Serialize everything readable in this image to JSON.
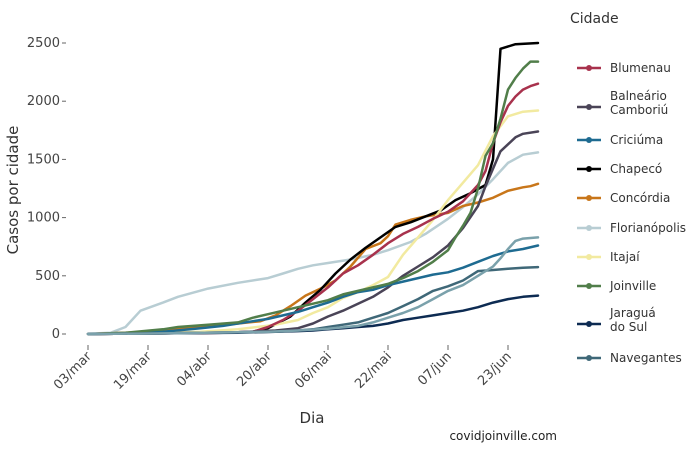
{
  "chart_data": {
    "type": "line",
    "xlabel": "Dia",
    "ylabel": "Casos por cidade",
    "legend_title": "Cidade",
    "legend_placement": "right",
    "credit": "covidjoinville.com",
    "x_ticks": [
      "03/mar",
      "19/mar",
      "04/abr",
      "20/abr",
      "06/mai",
      "22/mai",
      "07/jun",
      "23/jun"
    ],
    "x_tick_days": [
      0,
      16,
      32,
      48,
      64,
      80,
      96,
      112
    ],
    "x_range_days": [
      0,
      120
    ],
    "ylim": [
      0,
      2550
    ],
    "y_ticks": [
      0,
      500,
      1000,
      1500,
      2000,
      2500
    ],
    "grid": false,
    "series": [
      {
        "name": "Florianópolis",
        "color": "#b8cdd3",
        "points": [
          [
            0,
            3
          ],
          [
            6,
            10
          ],
          [
            10,
            60
          ],
          [
            14,
            200
          ],
          [
            20,
            270
          ],
          [
            24,
            320
          ],
          [
            32,
            390
          ],
          [
            40,
            440
          ],
          [
            48,
            480
          ],
          [
            52,
            520
          ],
          [
            56,
            560
          ],
          [
            60,
            590
          ],
          [
            64,
            610
          ],
          [
            70,
            640
          ],
          [
            76,
            680
          ],
          [
            80,
            720
          ],
          [
            86,
            790
          ],
          [
            90,
            860
          ],
          [
            96,
            990
          ],
          [
            100,
            1090
          ],
          [
            104,
            1200
          ],
          [
            108,
            1330
          ],
          [
            112,
            1470
          ],
          [
            116,
            1540
          ],
          [
            120,
            1560
          ]
        ]
      },
      {
        "name": "Concórdia",
        "color": "#c8761a",
        "points": [
          [
            0,
            0
          ],
          [
            10,
            10
          ],
          [
            20,
            30
          ],
          [
            30,
            60
          ],
          [
            40,
            90
          ],
          [
            46,
            110
          ],
          [
            50,
            160
          ],
          [
            54,
            240
          ],
          [
            58,
            330
          ],
          [
            62,
            390
          ],
          [
            66,
            460
          ],
          [
            70,
            580
          ],
          [
            74,
            730
          ],
          [
            78,
            780
          ],
          [
            80,
            840
          ],
          [
            82,
            940
          ],
          [
            86,
            980
          ],
          [
            90,
            1010
          ],
          [
            96,
            1040
          ],
          [
            100,
            1100
          ],
          [
            104,
            1130
          ],
          [
            108,
            1170
          ],
          [
            112,
            1230
          ],
          [
            116,
            1260
          ],
          [
            118,
            1270
          ],
          [
            120,
            1290
          ]
        ]
      },
      {
        "name": "Chapecó",
        "color": "#000000",
        "points": [
          [
            0,
            0
          ],
          [
            20,
            5
          ],
          [
            36,
            10
          ],
          [
            44,
            20
          ],
          [
            48,
            50
          ],
          [
            54,
            150
          ],
          [
            58,
            270
          ],
          [
            62,
            380
          ],
          [
            66,
            520
          ],
          [
            70,
            640
          ],
          [
            74,
            740
          ],
          [
            78,
            830
          ],
          [
            82,
            920
          ],
          [
            86,
            960
          ],
          [
            90,
            1010
          ],
          [
            94,
            1060
          ],
          [
            98,
            1150
          ],
          [
            102,
            1210
          ],
          [
            106,
            1280
          ],
          [
            108,
            1500
          ],
          [
            110,
            2450
          ],
          [
            114,
            2490
          ],
          [
            120,
            2500
          ]
        ]
      },
      {
        "name": "Itajaí",
        "color": "#f2eaa0",
        "points": [
          [
            0,
            0
          ],
          [
            20,
            10
          ],
          [
            30,
            20
          ],
          [
            40,
            40
          ],
          [
            50,
            80
          ],
          [
            56,
            120
          ],
          [
            60,
            180
          ],
          [
            64,
            230
          ],
          [
            68,
            310
          ],
          [
            72,
            360
          ],
          [
            76,
            420
          ],
          [
            80,
            490
          ],
          [
            84,
            680
          ],
          [
            88,
            830
          ],
          [
            92,
            980
          ],
          [
            96,
            1150
          ],
          [
            100,
            1300
          ],
          [
            104,
            1450
          ],
          [
            108,
            1700
          ],
          [
            112,
            1870
          ],
          [
            116,
            1910
          ],
          [
            120,
            1920
          ]
        ]
      },
      {
        "name": "Blumenau",
        "color": "#a8324d",
        "points": [
          [
            0,
            0
          ],
          [
            20,
            5
          ],
          [
            36,
            10
          ],
          [
            44,
            20
          ],
          [
            48,
            60
          ],
          [
            52,
            120
          ],
          [
            56,
            200
          ],
          [
            60,
            300
          ],
          [
            64,
            400
          ],
          [
            68,
            520
          ],
          [
            72,
            590
          ],
          [
            76,
            680
          ],
          [
            80,
            780
          ],
          [
            84,
            860
          ],
          [
            88,
            920
          ],
          [
            92,
            990
          ],
          [
            96,
            1050
          ],
          [
            100,
            1140
          ],
          [
            104,
            1280
          ],
          [
            106,
            1400
          ],
          [
            108,
            1640
          ],
          [
            110,
            1820
          ],
          [
            112,
            1960
          ],
          [
            114,
            2040
          ],
          [
            116,
            2100
          ],
          [
            118,
            2130
          ],
          [
            120,
            2150
          ]
        ]
      },
      {
        "name": "Balneário Camboriú",
        "color": "#4a4457",
        "points": [
          [
            0,
            0
          ],
          [
            20,
            5
          ],
          [
            40,
            15
          ],
          [
            50,
            30
          ],
          [
            56,
            50
          ],
          [
            60,
            90
          ],
          [
            64,
            150
          ],
          [
            68,
            200
          ],
          [
            72,
            260
          ],
          [
            76,
            320
          ],
          [
            80,
            400
          ],
          [
            84,
            500
          ],
          [
            88,
            580
          ],
          [
            92,
            660
          ],
          [
            96,
            760
          ],
          [
            100,
            910
          ],
          [
            104,
            1100
          ],
          [
            106,
            1270
          ],
          [
            108,
            1420
          ],
          [
            110,
            1570
          ],
          [
            112,
            1630
          ],
          [
            114,
            1690
          ],
          [
            116,
            1720
          ],
          [
            120,
            1740
          ]
        ]
      },
      {
        "name": "Criciúma",
        "color": "#1e6b91",
        "points": [
          [
            0,
            0
          ],
          [
            10,
            5
          ],
          [
            20,
            20
          ],
          [
            30,
            50
          ],
          [
            36,
            70
          ],
          [
            40,
            90
          ],
          [
            44,
            110
          ],
          [
            48,
            130
          ],
          [
            52,
            160
          ],
          [
            56,
            190
          ],
          [
            60,
            230
          ],
          [
            64,
            270
          ],
          [
            68,
            320
          ],
          [
            72,
            360
          ],
          [
            76,
            380
          ],
          [
            80,
            420
          ],
          [
            84,
            450
          ],
          [
            88,
            480
          ],
          [
            92,
            510
          ],
          [
            96,
            530
          ],
          [
            100,
            570
          ],
          [
            104,
            620
          ],
          [
            108,
            670
          ],
          [
            112,
            710
          ],
          [
            116,
            730
          ],
          [
            120,
            760
          ]
        ]
      },
      {
        "name": "Joinville",
        "color": "#517e4a",
        "points": [
          [
            0,
            0
          ],
          [
            10,
            10
          ],
          [
            20,
            40
          ],
          [
            24,
            60
          ],
          [
            28,
            70
          ],
          [
            32,
            80
          ],
          [
            40,
            100
          ],
          [
            44,
            140
          ],
          [
            48,
            170
          ],
          [
            52,
            200
          ],
          [
            56,
            230
          ],
          [
            60,
            260
          ],
          [
            64,
            290
          ],
          [
            68,
            340
          ],
          [
            72,
            370
          ],
          [
            76,
            400
          ],
          [
            80,
            430
          ],
          [
            84,
            480
          ],
          [
            88,
            540
          ],
          [
            92,
            620
          ],
          [
            96,
            720
          ],
          [
            98,
            830
          ],
          [
            100,
            930
          ],
          [
            102,
            1040
          ],
          [
            104,
            1250
          ],
          [
            106,
            1530
          ],
          [
            108,
            1640
          ],
          [
            110,
            1850
          ],
          [
            112,
            2100
          ],
          [
            114,
            2200
          ],
          [
            116,
            2280
          ],
          [
            118,
            2340
          ],
          [
            120,
            2340
          ]
        ]
      },
      {
        "name": "Jaraguá do Sul",
        "color": "#0d2b52",
        "points": [
          [
            0,
            0
          ],
          [
            20,
            5
          ],
          [
            40,
            10
          ],
          [
            50,
            20
          ],
          [
            56,
            25
          ],
          [
            60,
            30
          ],
          [
            64,
            40
          ],
          [
            68,
            50
          ],
          [
            72,
            60
          ],
          [
            76,
            70
          ],
          [
            80,
            90
          ],
          [
            84,
            120
          ],
          [
            88,
            140
          ],
          [
            92,
            160
          ],
          [
            96,
            180
          ],
          [
            100,
            200
          ],
          [
            104,
            230
          ],
          [
            108,
            270
          ],
          [
            112,
            300
          ],
          [
            116,
            320
          ],
          [
            120,
            330
          ]
        ]
      },
      {
        "name": "Navegantes",
        "color": "#3f6878",
        "points": [
          [
            0,
            0
          ],
          [
            20,
            5
          ],
          [
            40,
            15
          ],
          [
            50,
            20
          ],
          [
            56,
            30
          ],
          [
            60,
            40
          ],
          [
            64,
            60
          ],
          [
            68,
            80
          ],
          [
            72,
            100
          ],
          [
            76,
            140
          ],
          [
            80,
            180
          ],
          [
            84,
            240
          ],
          [
            88,
            300
          ],
          [
            92,
            370
          ],
          [
            96,
            410
          ],
          [
            100,
            460
          ],
          [
            102,
            500
          ],
          [
            104,
            540
          ],
          [
            108,
            550
          ],
          [
            112,
            560
          ],
          [
            116,
            570
          ],
          [
            120,
            575
          ]
        ]
      },
      {
        "name": "Navegantes-Florianópolis-light",
        "color": "#7aa1ab",
        "hidden_name": true,
        "points": [
          [
            0,
            0
          ],
          [
            20,
            5
          ],
          [
            40,
            15
          ],
          [
            48,
            20
          ],
          [
            56,
            30
          ],
          [
            64,
            45
          ],
          [
            72,
            70
          ],
          [
            76,
            100
          ],
          [
            80,
            140
          ],
          [
            84,
            180
          ],
          [
            88,
            230
          ],
          [
            92,
            300
          ],
          [
            96,
            370
          ],
          [
            100,
            420
          ],
          [
            104,
            500
          ],
          [
            108,
            580
          ],
          [
            110,
            650
          ],
          [
            112,
            730
          ],
          [
            114,
            800
          ],
          [
            116,
            820
          ],
          [
            120,
            830
          ]
        ]
      }
    ],
    "legend": [
      {
        "label_lines": [
          "Blumenau"
        ],
        "color": "#a8324d"
      },
      {
        "label_lines": [
          "Balneário",
          " Camboriú"
        ],
        "color": "#4a4457"
      },
      {
        "label_lines": [
          "Criciúma"
        ],
        "color": "#1e6b91"
      },
      {
        "label_lines": [
          "Chapecó"
        ],
        "color": "#000000"
      },
      {
        "label_lines": [
          "Concórdia"
        ],
        "color": "#c8761a"
      },
      {
        "label_lines": [
          "Florianópolis"
        ],
        "color": "#b8cdd3"
      },
      {
        "label_lines": [
          "Itajaí"
        ],
        "color": "#f2eaa0"
      },
      {
        "label_lines": [
          "Joinville"
        ],
        "color": "#517e4a"
      },
      {
        "label_lines": [
          "Jaraguá",
          " do Sul"
        ],
        "color": "#0d2b52"
      },
      {
        "label_lines": [
          "Navegantes"
        ],
        "color": "#3f6878"
      }
    ]
  }
}
